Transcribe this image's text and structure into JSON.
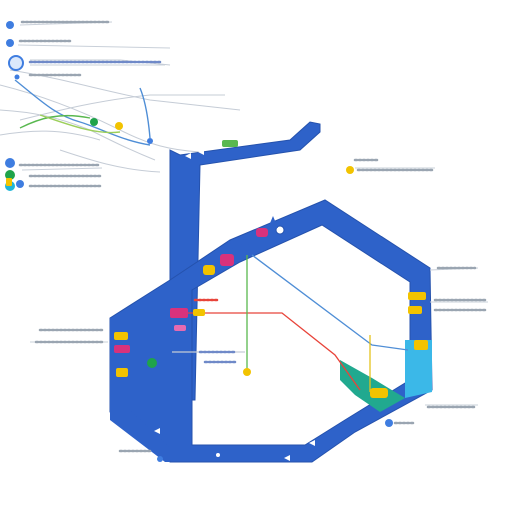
{
  "diagram": {
    "kind": "stylized transit route map",
    "labels_legible": false,
    "colors": {
      "background": "#ffffff",
      "route_main": "#2e62c9",
      "route_outline": "#2552ad",
      "route_cyan": "#3bb8e8",
      "route_teal": "#21a98f",
      "line_red": "#e8443a",
      "line_green": "#59b84f",
      "line_yellow": "#e4c21c",
      "line_blue_thin": "#4f8ed6",
      "line_gray": "#b9c3cf",
      "label_gray": "#7b8794",
      "label_blue": "#5878c8",
      "marker_yellow": "#f2c300",
      "marker_magenta": "#d8327c",
      "marker_green": "#1fa34a",
      "marker_cyan": "#1fb6d8",
      "marker_blue": "#3f7de0"
    },
    "stations": [
      {
        "name": "station-dot-top-left",
        "color": "marker_blue"
      },
      {
        "name": "station-dot-left-1",
        "color": "marker_blue"
      },
      {
        "name": "station-dot-left-2",
        "color": "marker_green"
      },
      {
        "name": "station-dot-left-3",
        "color": "marker_cyan"
      },
      {
        "name": "station-dot-right-yellow",
        "color": "marker_yellow"
      },
      {
        "name": "station-dot-bottom-blue",
        "color": "marker_blue"
      },
      {
        "name": "station-dot-center-green",
        "color": "marker_green"
      }
    ]
  }
}
